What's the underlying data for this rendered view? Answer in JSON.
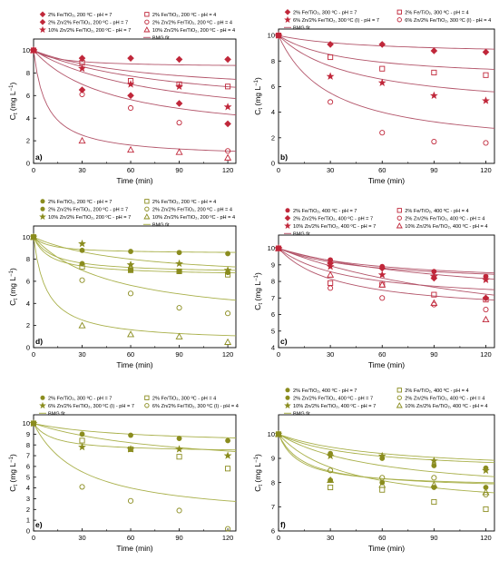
{
  "figure": {
    "colors": {
      "red": "#c0273a",
      "olive": "#8a8c1e",
      "fit_red": "#b3556a",
      "fit_olive": "#a9b04a"
    }
  },
  "chart_data": [
    {
      "panel": "a)",
      "type": "scatter",
      "xlabel": "Time (min)",
      "ylabel": "C",
      "ylabel_sub": "t",
      "ylabel_unit": " (mg L",
      "ylabel_exp": "−1",
      "ylabel_close": ")",
      "xlim": [
        0,
        125
      ],
      "ylim": [
        0,
        11
      ],
      "xticks": [
        0,
        30,
        60,
        90,
        120
      ],
      "yticks": [
        0,
        2,
        4,
        6,
        8,
        10
      ],
      "color": "red",
      "fit_color": "fit_red",
      "legend": {
        "columns": 2,
        "fit_label": "BMG fit",
        "fit_column": 1
      },
      "series": [
        {
          "name": "2% Fe/TiO₂, 200 ºC - pH = 7",
          "marker": "diamond",
          "filled": true,
          "x": [
            0,
            30,
            60,
            90,
            120
          ],
          "y": [
            10,
            9.3,
            9.3,
            9.2,
            9.2
          ],
          "fit": [
            0.15,
            15
          ]
        },
        {
          "name": "2% Fe/TiO₂, 200 ºC - pH = 4",
          "marker": "square",
          "filled": false,
          "x": [
            0,
            30,
            60,
            90,
            120
          ],
          "y": [
            10,
            8.9,
            7.3,
            7,
            6.8
          ],
          "fit": [
            0.4,
            70
          ]
        },
        {
          "name": "2% Zn/2% Fe/TiO₂, 200 ºC - pH = 7",
          "marker": "diamond",
          "filled": true,
          "x": [
            0,
            30,
            60,
            90,
            120
          ],
          "y": [
            10,
            6.5,
            6,
            5.3,
            3.5
          ],
          "fit": [
            0.7,
            80
          ]
        },
        {
          "name": "2% Zn/2% Fe/TiO₂, 200 ºC - pH = 4",
          "marker": "circle",
          "filled": false,
          "x": [
            0,
            30,
            60,
            90,
            120
          ],
          "y": [
            10,
            6.1,
            4.9,
            3.6,
            1.1
          ],
          "fit": [
            0.8,
            50
          ]
        },
        {
          "name": "10% Zn/2% Fe/TiO₂, 200 ºC - pH = 7",
          "marker": "star",
          "filled": true,
          "x": [
            0,
            30,
            60,
            90,
            120
          ],
          "y": [
            10,
            8.4,
            7,
            6.8,
            5
          ],
          "fit": [
            0.55,
            85
          ]
        },
        {
          "name": "10% Zn/2% Fe/TiO₂, 200 ºC - pH = 4",
          "marker": "triangle",
          "filled": false,
          "x": [
            0,
            30,
            60,
            90,
            120
          ],
          "y": [
            10,
            2,
            1.2,
            1,
            0.5
          ],
          "fit": [
            0.95,
            8
          ]
        }
      ]
    },
    {
      "panel": "b)",
      "type": "scatter",
      "xlabel": "Time (min)",
      "ylabel": "C",
      "ylabel_sub": "t",
      "ylabel_unit": " (mg L",
      "ylabel_exp": "−1",
      "ylabel_close": ")",
      "xlim": [
        0,
        125
      ],
      "ylim": [
        0,
        10.5
      ],
      "xticks": [
        0,
        30,
        60,
        90,
        120
      ],
      "yticks": [
        0,
        2,
        4,
        6,
        8,
        10
      ],
      "color": "red",
      "fit_color": "fit_red",
      "legend": {
        "columns": 2,
        "fit_label": "BMG fit",
        "fit_column": 0
      },
      "series": [
        {
          "name": "2% Fe/TiO₂, 300 ºC - pH = 7",
          "marker": "diamond",
          "filled": true,
          "x": [
            0,
            30,
            60,
            90,
            120
          ],
          "y": [
            10,
            9.3,
            9.3,
            8.8,
            8.7
          ],
          "fit": [
            0.15,
            50
          ]
        },
        {
          "name": "2% Fe/TiO₂, 300 ºC - pH = 4",
          "marker": "square",
          "filled": false,
          "x": [
            0,
            30,
            60,
            90,
            120
          ],
          "y": [
            10,
            8.3,
            7.4,
            7.1,
            6.9
          ],
          "fit": [
            0.35,
            40
          ]
        },
        {
          "name": "6% Zn/2% Fe/TiO₂, 300 ºC (I) - pH = 7",
          "marker": "star",
          "filled": true,
          "x": [
            0,
            30,
            60,
            90,
            120
          ],
          "y": [
            10,
            6.8,
            6.3,
            5.3,
            4.9
          ],
          "fit": [
            0.6,
            45
          ]
        },
        {
          "name": "6% Zn/2% Fe/TiO₂, 300 ºC (I) - pH = 4",
          "marker": "circle",
          "filled": false,
          "x": [
            0,
            30,
            60,
            90,
            120
          ],
          "y": [
            10,
            4.8,
            2.4,
            1.7,
            1.6
          ],
          "fit": [
            0.9,
            30
          ]
        }
      ]
    },
    {
      "panel": "d)",
      "type": "scatter",
      "xlabel": "Time (min)",
      "ylabel": "C",
      "ylabel_sub": "t",
      "ylabel_unit": " (mg L",
      "ylabel_exp": "−1",
      "ylabel_close": ")",
      "xlim": [
        0,
        125
      ],
      "ylim": [
        0,
        11
      ],
      "xticks": [
        0,
        30,
        60,
        90,
        120
      ],
      "yticks": [
        0,
        2,
        4,
        6,
        8,
        10
      ],
      "color": "olive",
      "fit_color": "fit_olive",
      "legend": {
        "columns": 2,
        "fit_label": "BMG fit",
        "fit_column": 1
      },
      "series": [
        {
          "name": "2% Fe/TiO₂, 200 ºC - pH = 7",
          "marker": "circle",
          "filled": true,
          "x": [
            0,
            30,
            60,
            90,
            120
          ],
          "y": [
            10,
            8.8,
            8.7,
            8.6,
            8.5
          ],
          "fit": [
            0.15,
            10
          ]
        },
        {
          "name": "2% Fe/TiO₂, 200 ºC - pH = 4",
          "marker": "square",
          "filled": false,
          "x": [
            0,
            30,
            60,
            90,
            120
          ],
          "y": [
            10,
            7.3,
            7,
            6.9,
            6.6
          ],
          "fit": [
            0.35,
            10
          ]
        },
        {
          "name": "2% Zn/2% Fe/TiO₂, 200 ºC - pH = 7",
          "marker": "circle",
          "filled": true,
          "x": [
            0,
            30,
            60,
            90,
            120
          ],
          "y": [
            10,
            7.6,
            7,
            6.9,
            6.8
          ],
          "fit": [
            0.33,
            12
          ]
        },
        {
          "name": "2% Zn/2% Fe/TiO₂, 200 ºC - pH = 4",
          "marker": "circle",
          "filled": false,
          "x": [
            0,
            30,
            60,
            90,
            120
          ],
          "y": [
            10,
            6.1,
            4.9,
            3.6,
            3.1
          ],
          "fit": [
            0.8,
            50
          ]
        },
        {
          "name": "10% Zn/2% Fe/TiO₂, 200 ºC - pH = 7",
          "marker": "star",
          "filled": true,
          "x": [
            0,
            30,
            60,
            90,
            120
          ],
          "y": [
            10,
            9.4,
            7.5,
            7.6,
            7
          ],
          "fit": [
            0.4,
            60
          ]
        },
        {
          "name": "10% Zn/2% Fe/TiO₂, 200 ºC - pH = 4",
          "marker": "triangle",
          "filled": false,
          "x": [
            0,
            30,
            60,
            90,
            120
          ],
          "y": [
            10,
            2,
            1.2,
            1,
            0.5
          ],
          "fit": [
            0.95,
            8
          ]
        }
      ]
    },
    {
      "panel": "c)",
      "type": "scatter",
      "xlabel": "Time (min)",
      "ylabel": "C",
      "ylabel_sub": "t",
      "ylabel_unit": " (mg L",
      "ylabel_exp": "−1",
      "ylabel_close": ")",
      "xlim": [
        0,
        125
      ],
      "ylim": [
        4,
        10.8
      ],
      "xticks": [
        0,
        30,
        60,
        90,
        120
      ],
      "yticks": [
        4,
        5,
        6,
        7,
        8,
        9,
        10
      ],
      "color": "red",
      "fit_color": "fit_red",
      "legend": {
        "columns": 2,
        "fit_label": "BMG fit",
        "fit_column": 0
      },
      "series": [
        {
          "name": "2% Fe/TiO₂, 400 ºC - pH = 7",
          "marker": "circle",
          "filled": true,
          "x": [
            0,
            30,
            60,
            90,
            120
          ],
          "y": [
            10,
            9.3,
            8.9,
            8.6,
            8.3
          ],
          "fit": [
            0.22,
            60
          ]
        },
        {
          "name": "2% Fe/TiO₂, 400 ºC - pH = 4",
          "marker": "square",
          "filled": false,
          "x": [
            0,
            30,
            60,
            90,
            120
          ],
          "y": [
            10,
            7.9,
            7.8,
            7.2,
            6.9
          ],
          "fit": [
            0.33,
            40
          ]
        },
        {
          "name": "2% Zn/2% Fe/TiO₂, 400 ºC - pH = 7",
          "marker": "diamond",
          "filled": true,
          "x": [
            0,
            30,
            60,
            90,
            120
          ],
          "y": [
            10,
            9.1,
            8.8,
            8.2,
            7
          ],
          "fit": [
            0.35,
            110
          ]
        },
        {
          "name": "2% Zn/2% Fe/TiO₂, 400 ºC - pH = 4",
          "marker": "circle",
          "filled": false,
          "x": [
            0,
            30,
            60,
            90,
            120
          ],
          "y": [
            10,
            7.6,
            7,
            6.6,
            6.3
          ],
          "fit": [
            0.4,
            35
          ]
        },
        {
          "name": "10% Zn/2% Fe/TiO₂, 400 ºC - pH = 7",
          "marker": "star",
          "filled": true,
          "x": [
            0,
            30,
            60,
            90,
            120
          ],
          "y": [
            10,
            8.9,
            8.4,
            8.3,
            8.1
          ],
          "fit": [
            0.22,
            50
          ]
        },
        {
          "name": "10% Zn/2% Fe/TiO₂, 400 ºC - pH = 4",
          "marker": "triangle",
          "filled": false,
          "x": [
            0,
            30,
            60,
            90,
            120
          ],
          "y": [
            10,
            8.4,
            7.8,
            6.7,
            5.7
          ],
          "fit": [
            0.6,
            140
          ]
        }
      ]
    },
    {
      "panel": "e)",
      "type": "scatter",
      "xlabel": "Time (min)",
      "ylabel": "C",
      "ylabel_sub": "t",
      "ylabel_unit": " (mg L",
      "ylabel_exp": "−1",
      "ylabel_close": ")",
      "xlim": [
        0,
        125
      ],
      "ylim": [
        0,
        10.8
      ],
      "xticks": [
        0,
        30,
        60,
        90,
        120
      ],
      "yticks": [
        0,
        1,
        2,
        3,
        4,
        5,
        6,
        7,
        8,
        9,
        10
      ],
      "color": "olive",
      "fit_color": "fit_olive",
      "legend": {
        "columns": 2,
        "fit_label": "BMG fit",
        "fit_column": 0
      },
      "series": [
        {
          "name": "2% Fe/TiO₂, 300 ºC - pH = 7",
          "marker": "circle",
          "filled": true,
          "x": [
            0,
            30,
            60,
            90,
            120
          ],
          "y": [
            10,
            9,
            8.9,
            8.6,
            8.4
          ],
          "fit": [
            0.2,
            60
          ]
        },
        {
          "name": "2% Fe/TiO₂, 300 ºC - pH = 4",
          "marker": "square",
          "filled": false,
          "x": [
            0,
            30,
            60,
            90,
            120
          ],
          "y": [
            10,
            8.4,
            7.6,
            6.9,
            5.8
          ],
          "fit": [
            0.45,
            90
          ]
        },
        {
          "name": "6% Zn/2% Fe/TiO₂, 300 ºC (I) - pH = 7",
          "marker": "star",
          "filled": true,
          "x": [
            0,
            30,
            60,
            90,
            120
          ],
          "y": [
            10,
            7.8,
            7.6,
            7.6,
            7
          ],
          "fit": [
            0.27,
            12
          ]
        },
        {
          "name": "6% Zn/2% Fe/TiO₂, 300 ºC (I) - pH = 4",
          "marker": "circle",
          "filled": false,
          "x": [
            0,
            30,
            60,
            90,
            120
          ],
          "y": [
            10,
            4.1,
            2.8,
            1.9,
            0.2
          ],
          "fit": [
            0.9,
            30
          ]
        }
      ]
    },
    {
      "panel": "f)",
      "type": "scatter",
      "xlabel": "Time (min)",
      "ylabel": "C",
      "ylabel_sub": "t",
      "ylabel_unit": " (mg L",
      "ylabel_exp": "−1",
      "ylabel_close": ")",
      "xlim": [
        0,
        125
      ],
      "ylim": [
        6,
        10.8
      ],
      "xticks": [
        0,
        30,
        60,
        90,
        120
      ],
      "yticks": [
        6,
        7,
        8,
        9,
        10
      ],
      "color": "olive",
      "fit_color": "fit_olive",
      "legend": {
        "columns": 2,
        "fit_label": "BMG fit",
        "fit_column": 0
      },
      "series": [
        {
          "name": "2% Fe/TiO₂, 400 ºC - pH = 7",
          "marker": "circle",
          "filled": true,
          "x": [
            0,
            30,
            60,
            90,
            120
          ],
          "y": [
            10,
            9.2,
            9,
            8.7,
            8.6
          ],
          "fit": [
            0.16,
            45
          ]
        },
        {
          "name": "2% Fe/TiO₂, 400 ºC - pH = 4",
          "marker": "square",
          "filled": false,
          "x": [
            0,
            30,
            60,
            90,
            120
          ],
          "y": [
            10,
            7.8,
            7.7,
            7.2,
            6.9
          ],
          "fit": [
            0.32,
            40
          ]
        },
        {
          "name": "2% Zn/2% Fe/TiO₂, 400 ºC - pH = 7",
          "marker": "circle",
          "filled": true,
          "x": [
            0,
            30,
            60,
            90,
            120
          ],
          "y": [
            10,
            8.1,
            8,
            7.8,
            7.8
          ],
          "fit": [
            0.22,
            12
          ]
        },
        {
          "name": "2% Zn/2% Fe/TiO₂, 400 ºC - pH = 4",
          "marker": "circle",
          "filled": false,
          "x": [
            0,
            30,
            60,
            90,
            120
          ],
          "y": [
            10,
            8.5,
            8.2,
            8.2,
            7.5
          ],
          "fit": [
            0.26,
            60
          ]
        },
        {
          "name": "10% Zn/2% Fe/TiO₂, 400 ºC - pH = 7",
          "marker": "star",
          "filled": true,
          "x": [
            0,
            30,
            60,
            90,
            120
          ],
          "y": [
            10,
            9.1,
            9.1,
            8.9,
            8.5
          ],
          "fit": [
            0.16,
            60
          ]
        },
        {
          "name": "10% Zn/2% Fe/TiO₂, 400 ºC - pH = 4",
          "marker": "triangle",
          "filled": false,
          "x": [
            0,
            30,
            60,
            90,
            120
          ],
          "y": [
            10,
            8.1,
            7.9,
            7.9,
            7.6
          ],
          "fit": [
            0.23,
            15
          ]
        }
      ]
    }
  ]
}
